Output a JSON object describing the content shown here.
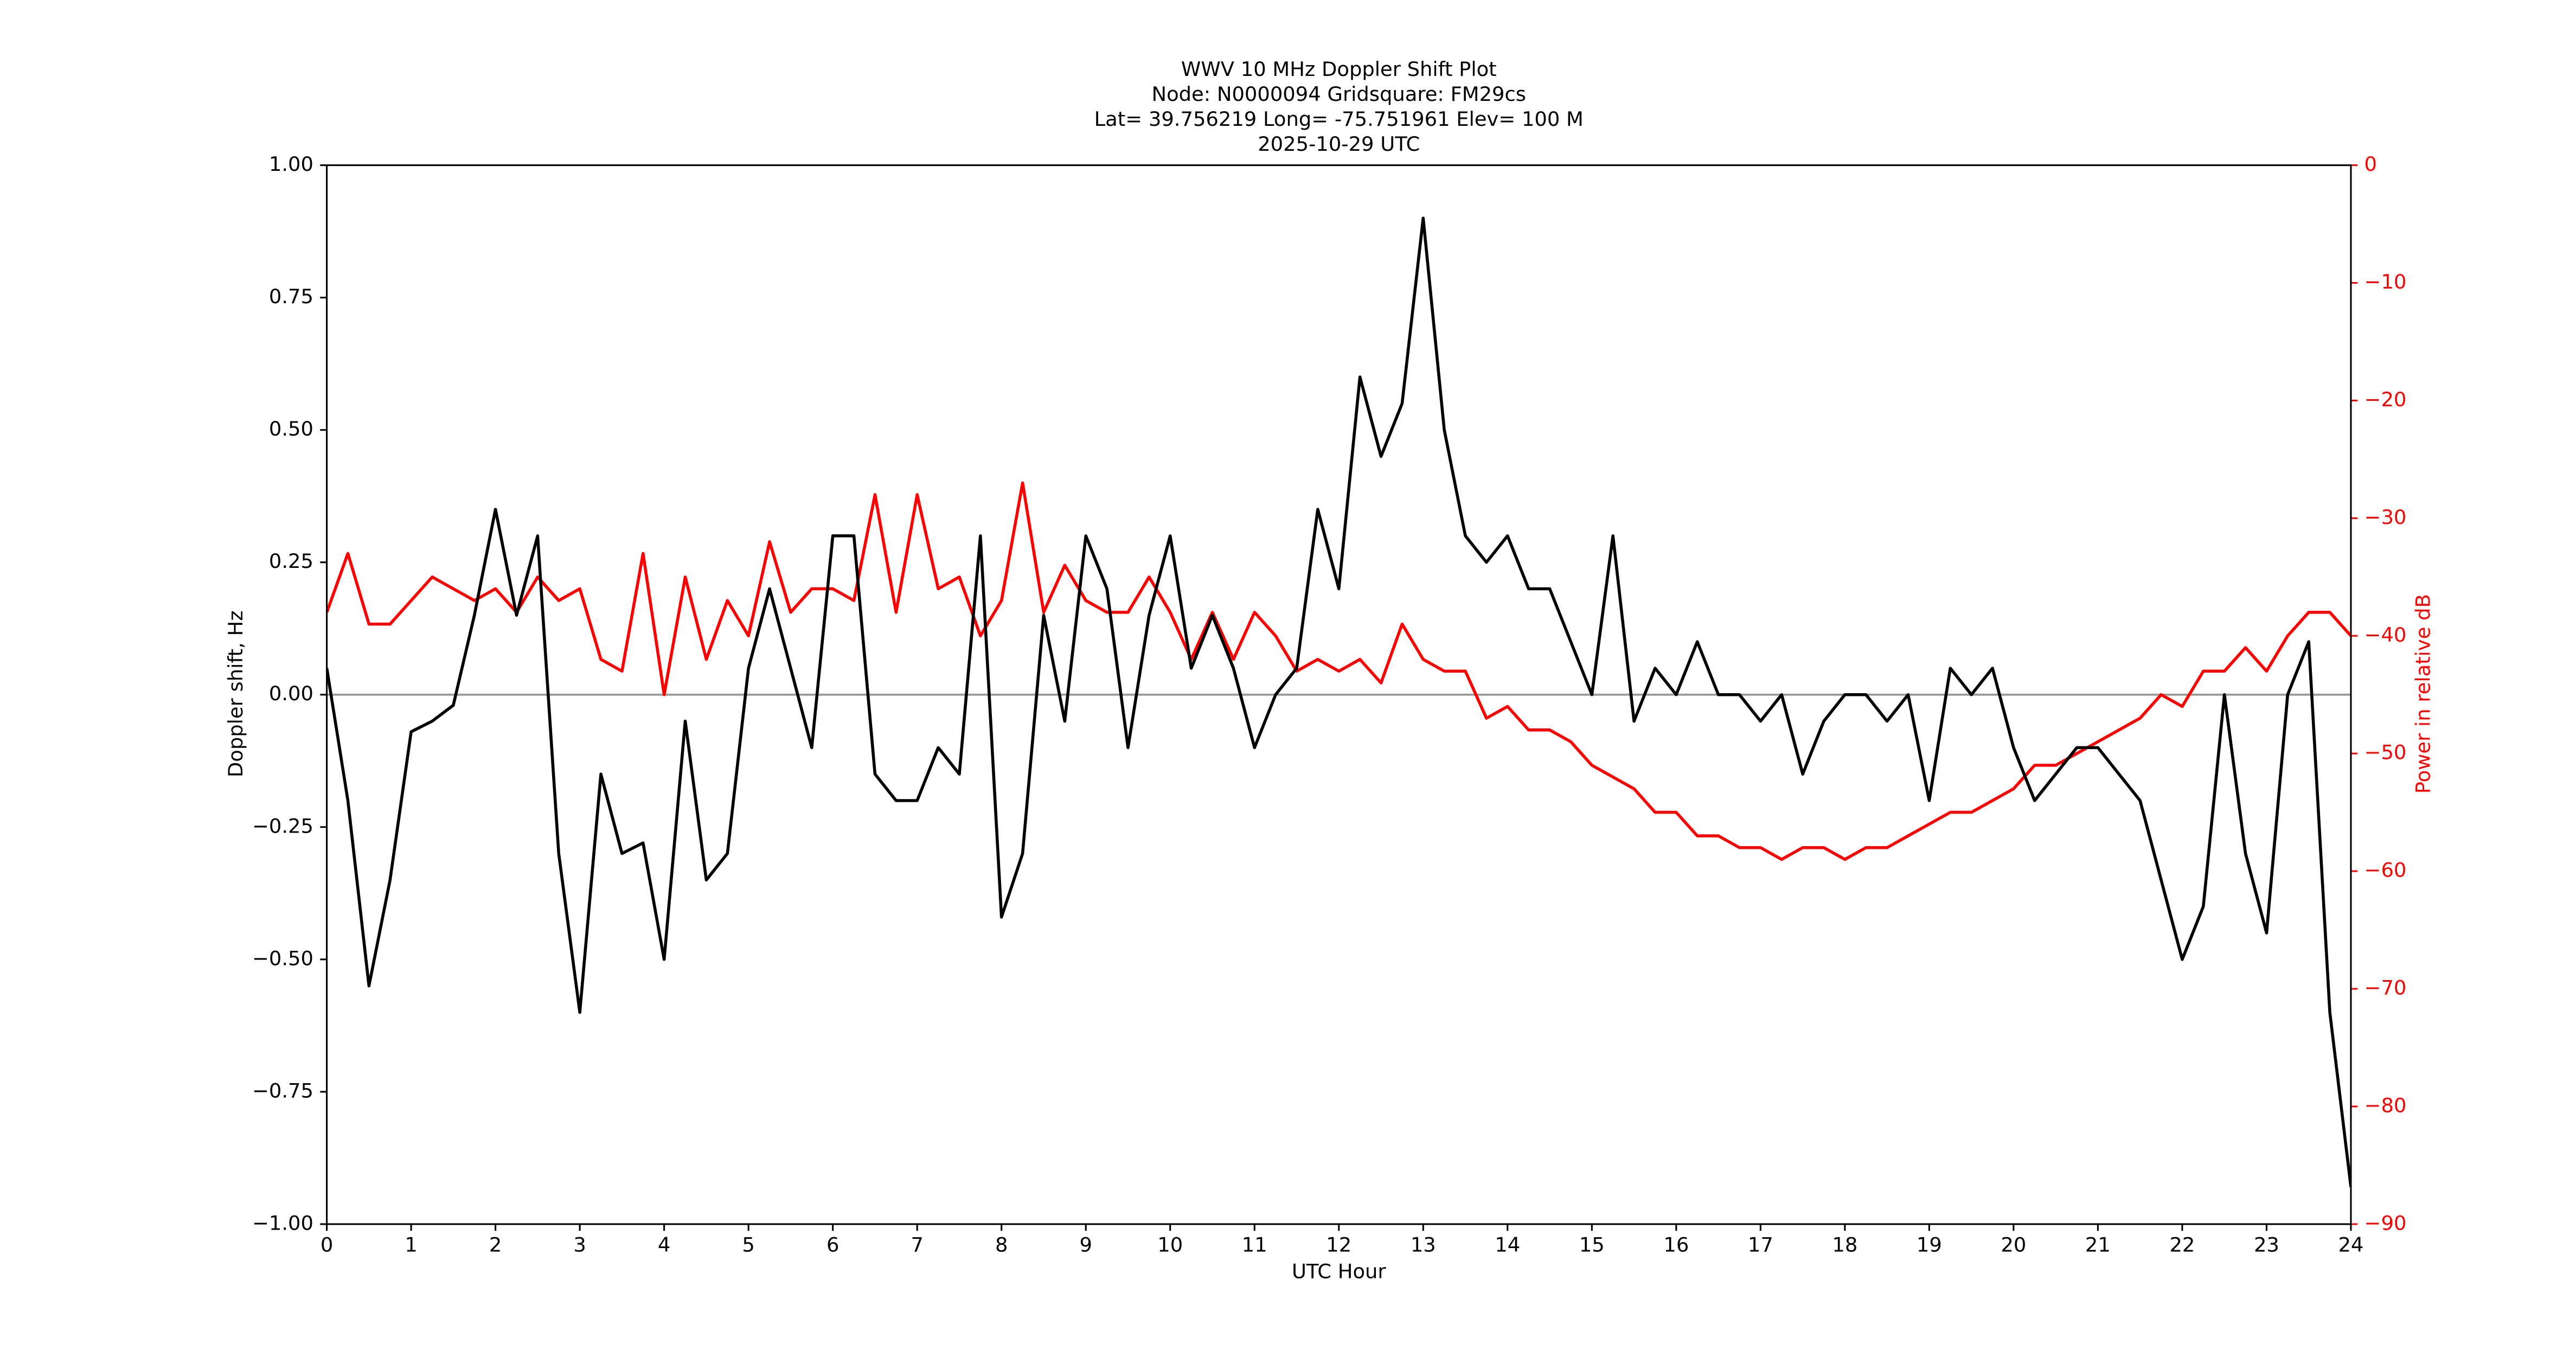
{
  "chart_data": {
    "type": "line",
    "title": [
      "WWV 10 MHz Doppler Shift Plot",
      "Node:  N0000094     Gridsquare:  FM29cs",
      "Lat= 39.756219    Long= -75.751961    Elev= 100 M",
      "2025-10-29  UTC"
    ],
    "xlabel": "UTC Hour",
    "ylabel": "Doppler shift, Hz",
    "y2label": "Power in relative dB",
    "hline": 0,
    "x": [
      0,
      0.25,
      0.5,
      0.75,
      1,
      1.25,
      1.5,
      1.75,
      2,
      2.25,
      2.5,
      2.75,
      3,
      3.25,
      3.5,
      3.75,
      4,
      4.25,
      4.5,
      4.75,
      5,
      5.25,
      5.5,
      5.75,
      6,
      6.25,
      6.5,
      6.75,
      7,
      7.25,
      7.5,
      7.75,
      8,
      8.25,
      8.5,
      8.75,
      9,
      9.25,
      9.5,
      9.75,
      10,
      10.25,
      10.5,
      10.75,
      11,
      11.25,
      11.5,
      11.75,
      12,
      12.25,
      12.5,
      12.75,
      13,
      13.25,
      13.5,
      13.75,
      14,
      14.25,
      14.5,
      14.75,
      15,
      15.25,
      15.5,
      15.75,
      16,
      16.25,
      16.5,
      16.75,
      17,
      17.25,
      17.5,
      17.75,
      18,
      18.25,
      18.5,
      18.75,
      19,
      19.25,
      19.5,
      19.75,
      20,
      20.25,
      20.5,
      20.75,
      21,
      21.25,
      21.5,
      21.75,
      22,
      22.25,
      22.5,
      22.75,
      23,
      23.25,
      23.5,
      23.75,
      24
    ],
    "series": [
      {
        "name": "Doppler shift",
        "color": "#000000",
        "values": [
          0.05,
          -0.2,
          -0.55,
          -0.35,
          -0.07,
          -0.05,
          -0.02,
          0.15,
          0.35,
          0.15,
          0.3,
          -0.3,
          -0.6,
          -0.15,
          -0.3,
          -0.28,
          -0.5,
          -0.05,
          -0.35,
          -0.3,
          0.05,
          0.2,
          0.05,
          -0.1,
          0.3,
          0.3,
          -0.15,
          -0.2,
          -0.2,
          -0.1,
          -0.15,
          0.3,
          -0.42,
          -0.3,
          0.15,
          -0.05,
          0.3,
          0.2,
          -0.1,
          0.15,
          0.3,
          0.05,
          0.15,
          0.05,
          -0.1,
          0,
          0.05,
          0.35,
          0.2,
          0.6,
          0.45,
          0.55,
          0.9,
          0.5,
          0.3,
          0.25,
          0.3,
          0.2,
          0.2,
          0.1,
          0,
          0.3,
          -0.05,
          0.05,
          0,
          0.1,
          0,
          0,
          -0.05,
          0,
          -0.15,
          -0.05,
          0,
          0,
          -0.05,
          0,
          -0.2,
          0.05,
          0,
          0.05,
          -0.1,
          -0.2,
          -0.15,
          -0.1,
          -0.1,
          -0.15,
          -0.2,
          -0.35,
          -0.5,
          -0.4,
          0,
          -0.3,
          -0.45,
          0,
          0.1,
          -0.6,
          -0.93
        ]
      },
      {
        "name": "Power",
        "color": "#ff0000",
        "axis": "y2",
        "values": [
          -38,
          -33,
          -39,
          -39,
          -37,
          -35,
          -36,
          -37,
          -36,
          -38,
          -35,
          -37,
          -36,
          -42,
          -43,
          -33,
          -45,
          -35,
          -42,
          -37,
          -40,
          -32,
          -38,
          -36,
          -36,
          -37,
          -28,
          -38,
          -28,
          -36,
          -35,
          -40,
          -37,
          -27,
          -38,
          -34,
          -37,
          -38,
          -38,
          -35,
          -38,
          -42,
          -38,
          -42,
          -38,
          -40,
          -43,
          -42,
          -43,
          -42,
          -44,
          -39,
          -42,
          -43,
          -43,
          -47,
          -46,
          -48,
          -48,
          -49,
          -51,
          -52,
          -53,
          -55,
          -55,
          -57,
          -57,
          -58,
          -58,
          -59,
          -58,
          -58,
          -59,
          -58,
          -58,
          -57,
          -56,
          -55,
          -55,
          -54,
          -53,
          -51,
          -51,
          -50,
          -49,
          -48,
          -47,
          -45,
          -46,
          -43,
          -43,
          -41,
          -43,
          -40,
          -38,
          -38,
          -40
        ]
      }
    ],
    "xlim": [
      0,
      24
    ],
    "xticks": [
      0,
      1,
      2,
      3,
      4,
      5,
      6,
      7,
      8,
      9,
      10,
      11,
      12,
      13,
      14,
      15,
      16,
      17,
      18,
      19,
      20,
      21,
      22,
      23,
      24
    ],
    "ylim": [
      -1,
      1
    ],
    "yticks": [
      {
        "value": -1,
        "label": "−1.00"
      },
      {
        "value": -0.75,
        "label": "−0.75"
      },
      {
        "value": -0.5,
        "label": "−0.50"
      },
      {
        "value": -0.25,
        "label": "−0.25"
      },
      {
        "value": 0,
        "label": "0.00"
      },
      {
        "value": 0.25,
        "label": "0.25"
      },
      {
        "value": 0.5,
        "label": "0.50"
      },
      0.75,
      {
        "value": 1,
        "label": "1.00"
      }
    ],
    "y2lim": [
      -90,
      0
    ],
    "y2ticks": [
      {
        "value": -90,
        "label": "−90"
      },
      {
        "value": -80,
        "label": "−80"
      },
      {
        "value": -70,
        "label": "−70"
      },
      {
        "value": -60,
        "label": "−60"
      },
      {
        "value": -50,
        "label": "−50"
      },
      {
        "value": -40,
        "label": "−40"
      },
      {
        "value": -30,
        "label": "−30"
      },
      {
        "value": -20,
        "label": "−20"
      },
      {
        "value": -10,
        "label": "−10"
      },
      0
    ],
    "y2color": "#ff0000"
  }
}
